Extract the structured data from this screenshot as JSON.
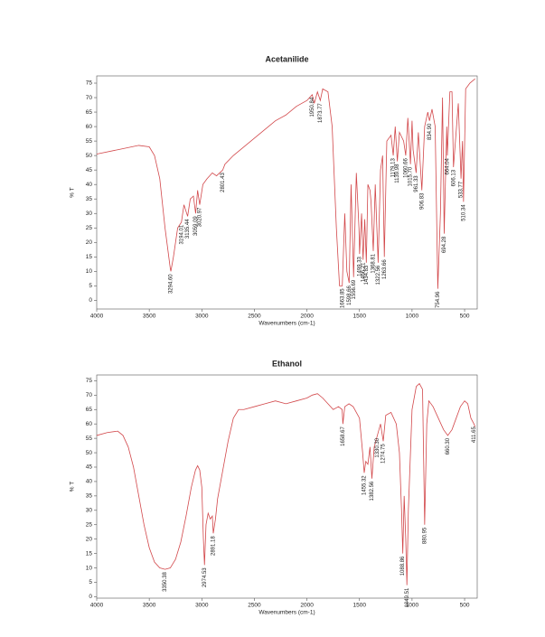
{
  "chart_data": [
    {
      "type": "line",
      "title": "Acetanilide",
      "xlabel": "Wavenumbers (cm-1)",
      "ylabel": "% T",
      "color": "#d2474a",
      "xlim": [
        4000,
        380
      ],
      "ylim": [
        -3,
        77.5
      ],
      "xticks": [
        4000,
        3500,
        3000,
        2500,
        2000,
        1500,
        1000,
        500
      ],
      "yticks": [
        0,
        5,
        10,
        15,
        20,
        25,
        30,
        35,
        40,
        45,
        50,
        55,
        60,
        65,
        70,
        75
      ],
      "x": [
        4000,
        3800,
        3600,
        3500,
        3450,
        3400,
        3350,
        3300,
        3294.6,
        3270,
        3230,
        3194,
        3170,
        3135,
        3110,
        3080,
        3059,
        3040,
        3020,
        2990,
        2950,
        2900,
        2860,
        2801,
        2780,
        2700,
        2600,
        2500,
        2400,
        2300,
        2200,
        2100,
        2000,
        1950,
        1930,
        1900,
        1873,
        1850,
        1800,
        1760,
        1720,
        1690,
        1663.8,
        1640,
        1620,
        1598,
        1580,
        1556,
        1530,
        1505,
        1499,
        1480,
        1466,
        1450,
        1434.8,
        1420,
        1400,
        1390,
        1368.8,
        1350,
        1322.5,
        1300,
        1280,
        1263.7,
        1240,
        1200,
        1179,
        1160,
        1139.9,
        1120,
        1080,
        1060,
        1040,
        1015,
        1000,
        990,
        961,
        940,
        906.8,
        880,
        850,
        834,
        810,
        780,
        754.9,
        730,
        710,
        694.3,
        670,
        664,
        640,
        620,
        606,
        560,
        534,
        520,
        510.3,
        490,
        450,
        400
      ],
      "values": [
        50.5,
        52,
        53.5,
        53,
        50,
        42,
        25,
        11,
        10,
        15,
        25,
        27,
        33,
        29,
        35,
        36,
        30,
        38,
        33,
        40,
        42,
        44,
        43,
        45,
        47,
        50,
        53,
        56,
        59,
        62,
        64,
        67,
        69,
        71,
        68,
        72,
        69,
        73,
        72,
        60,
        25,
        5,
        5,
        30,
        10,
        6,
        40,
        8,
        44,
        25,
        16,
        30,
        14,
        28,
        13,
        40,
        38,
        34,
        17,
        40,
        13,
        45,
        50,
        15,
        55,
        57,
        50,
        60,
        48,
        58,
        55,
        50,
        63,
        47,
        62,
        52,
        44,
        58,
        38,
        60,
        65,
        62,
        66,
        60,
        4,
        30,
        70,
        23,
        60,
        50,
        72,
        72,
        46,
        68,
        42,
        55,
        34,
        73,
        75,
        76.5
      ],
      "annotations": [
        {
          "x": 3294.6,
          "label": "3294.60"
        },
        {
          "x": 3194,
          "label": "3194.01"
        },
        {
          "x": 3135,
          "label": "3135.44"
        },
        {
          "x": 3059,
          "label": "3059.09"
        },
        {
          "x": 3020,
          "label": "3020.97"
        },
        {
          "x": 2801,
          "label": "2801.43"
        },
        {
          "x": 1950,
          "label": "1950.84"
        },
        {
          "x": 1873,
          "label": "1873.77"
        },
        {
          "x": 1663.8,
          "label": "1663.85"
        },
        {
          "x": 1598,
          "label": "1598.66"
        },
        {
          "x": 1556,
          "label": "1556.69"
        },
        {
          "x": 1499,
          "label": "1499.33"
        },
        {
          "x": 1466,
          "label": "1466.21"
        },
        {
          "x": 1434.8,
          "label": "1434.83"
        },
        {
          "x": 1368.8,
          "label": "1368.81"
        },
        {
          "x": 1322.5,
          "label": "1322.56"
        },
        {
          "x": 1263.7,
          "label": "1263.66"
        },
        {
          "x": 1179,
          "label": "1179.13"
        },
        {
          "x": 1139.9,
          "label": "1139.98"
        },
        {
          "x": 1060,
          "label": "1060.66"
        },
        {
          "x": 1015,
          "label": "1015.70"
        },
        {
          "x": 961,
          "label": "961.33"
        },
        {
          "x": 906.8,
          "label": "906.83"
        },
        {
          "x": 834,
          "label": "834.90"
        },
        {
          "x": 754.9,
          "label": "754.96"
        },
        {
          "x": 694.3,
          "label": "694.28"
        },
        {
          "x": 664,
          "label": "664.04"
        },
        {
          "x": 606,
          "label": "606.13"
        },
        {
          "x": 534,
          "label": "533.77"
        },
        {
          "x": 510.3,
          "label": "510.34"
        }
      ]
    },
    {
      "type": "line",
      "title": "Ethanol",
      "xlabel": "Wavenumbers (cm-1)",
      "ylabel": "% T",
      "color": "#d2474a",
      "xlim": [
        4000,
        380
      ],
      "ylim": [
        -0.5,
        77
      ],
      "xticks": [
        4000,
        3500,
        3000,
        2500,
        2000,
        1500,
        1000,
        500
      ],
      "yticks": [
        0,
        5,
        10,
        15,
        20,
        25,
        30,
        35,
        40,
        45,
        50,
        55,
        60,
        65,
        70,
        75
      ],
      "x": [
        4000,
        3900,
        3800,
        3750,
        3700,
        3650,
        3600,
        3550,
        3500,
        3450,
        3400,
        3350,
        3300,
        3250,
        3200,
        3150,
        3100,
        3060,
        3040,
        3020,
        3000,
        2985,
        2974.5,
        2960,
        2940,
        2920,
        2900,
        2891,
        2870,
        2850,
        2800,
        2750,
        2700,
        2650,
        2600,
        2500,
        2400,
        2300,
        2200,
        2100,
        2000,
        1950,
        1900,
        1850,
        1800,
        1750,
        1700,
        1665,
        1658,
        1640,
        1600,
        1560,
        1500,
        1470,
        1455,
        1440,
        1420,
        1400,
        1382,
        1360,
        1330,
        1300,
        1274,
        1250,
        1200,
        1150,
        1120,
        1100,
        1088,
        1075,
        1060,
        1049,
        1035,
        1000,
        960,
        930,
        900,
        880,
        860,
        840,
        800,
        750,
        700,
        660,
        620,
        580,
        540,
        500,
        470,
        440,
        411,
        400
      ],
      "values": [
        56,
        57,
        57.5,
        56,
        52,
        45,
        35,
        25,
        17,
        12,
        10,
        9.5,
        10,
        13,
        19,
        28,
        38,
        44,
        45.5,
        44,
        38,
        20,
        11,
        25,
        29,
        27,
        28,
        22,
        27,
        34,
        44,
        54,
        62,
        65,
        65,
        66,
        67,
        68,
        67,
        68,
        69,
        70,
        70.5,
        69,
        67,
        65,
        66,
        65,
        60,
        66,
        67,
        66,
        62,
        50,
        43,
        47,
        46,
        52,
        41,
        52,
        56,
        60,
        54,
        63,
        64,
        60,
        50,
        30,
        15,
        35,
        20,
        4,
        30,
        65,
        73,
        74,
        72,
        25,
        60,
        68,
        66,
        62,
        58,
        56,
        58,
        62,
        66,
        68,
        67,
        62,
        60,
        59
      ],
      "annotations": [
        {
          "x": 3350,
          "label": "3350.38"
        },
        {
          "x": 2974.5,
          "label": "2974.53"
        },
        {
          "x": 2891,
          "label": "2891.18"
        },
        {
          "x": 1658,
          "label": "1658.67"
        },
        {
          "x": 1455,
          "label": "1455.32"
        },
        {
          "x": 1382,
          "label": "1382.56"
        },
        {
          "x": 1330,
          "label": "1330.30"
        },
        {
          "x": 1274,
          "label": "1274.75"
        },
        {
          "x": 1088,
          "label": "1088.86"
        },
        {
          "x": 1049,
          "label": "1049.51"
        },
        {
          "x": 880,
          "label": "880.95"
        },
        {
          "x": 660,
          "label": "660.30"
        },
        {
          "x": 411,
          "label": "411.65"
        }
      ]
    }
  ]
}
